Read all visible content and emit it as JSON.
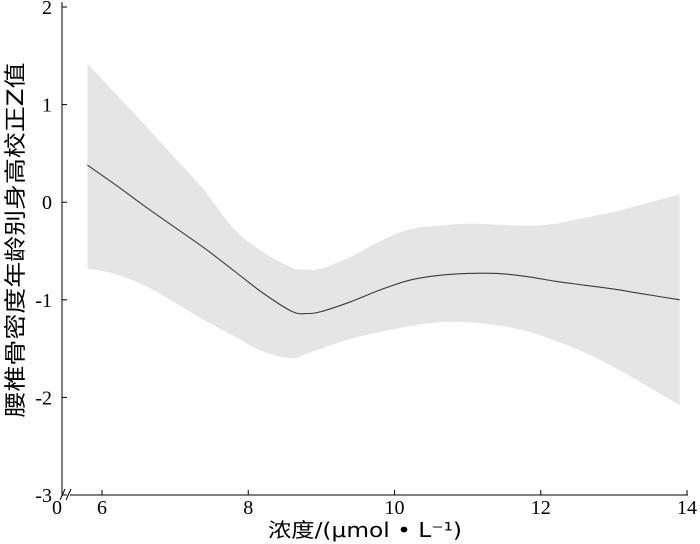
{
  "chart_data": {
    "type": "line",
    "xlabel": "浓度/(μmol • L⁻¹)",
    "ylabel": "腰椎骨密度年龄别身高校正Z值",
    "xlim": [
      0,
      14
    ],
    "ylim": [
      -3,
      2
    ],
    "x_axis_break": [
      0,
      6
    ],
    "xticks": [
      0,
      6,
      8,
      10,
      12,
      14
    ],
    "xtick_labels": [
      "0",
      "6",
      "8",
      "10",
      "12",
      "14"
    ],
    "yticks": [
      2,
      1,
      0,
      -1,
      -2,
      -3
    ],
    "ytick_labels": [
      "2",
      "1",
      "0",
      "-1",
      "-2",
      "-3"
    ],
    "grid": false,
    "legend": false,
    "confidence_band": true,
    "colors": {
      "line": "#3a3a3a",
      "band": "#e5e5e5",
      "axis": "#000000"
    },
    "series": [
      {
        "x": [
          5.8,
          6.2,
          6.6,
          7.0,
          7.4,
          7.8,
          8.2,
          8.6,
          8.8,
          9.0,
          9.4,
          9.8,
          10.2,
          10.6,
          11.0,
          11.4,
          11.8,
          12.2,
          12.6,
          13.0,
          13.4,
          13.9
        ],
        "y": [
          0.38,
          0.17,
          -0.05,
          -0.26,
          -0.47,
          -0.7,
          -0.93,
          -1.12,
          -1.14,
          -1.12,
          -1.02,
          -0.9,
          -0.8,
          -0.75,
          -0.73,
          -0.73,
          -0.76,
          -0.81,
          -0.85,
          -0.89,
          -0.94,
          -1.0
        ],
        "lower": [
          -0.68,
          -0.74,
          -0.86,
          -1.03,
          -1.21,
          -1.37,
          -1.53,
          -1.6,
          -1.55,
          -1.5,
          -1.4,
          -1.33,
          -1.27,
          -1.23,
          -1.23,
          -1.26,
          -1.32,
          -1.42,
          -1.54,
          -1.69,
          -1.86,
          -2.08
        ],
        "upper": [
          1.42,
          1.1,
          0.78,
          0.45,
          0.12,
          -0.27,
          -0.51,
          -0.67,
          -0.69,
          -0.68,
          -0.56,
          -0.4,
          -0.28,
          -0.24,
          -0.22,
          -0.23,
          -0.24,
          -0.22,
          -0.16,
          -0.1,
          -0.02,
          0.08
        ]
      }
    ]
  }
}
